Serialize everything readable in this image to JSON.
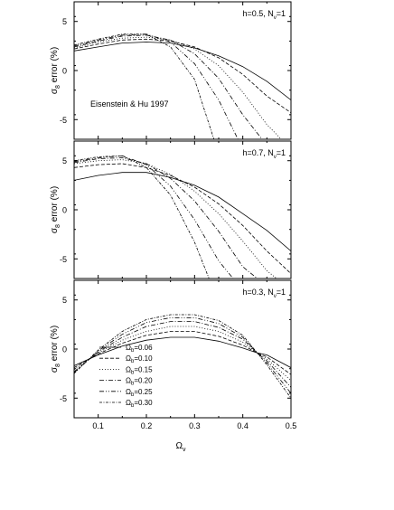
{
  "figure": {
    "xlabel_main": "Ω",
    "xlabel_sub": "ν",
    "x_ticks": [
      "0.1",
      "0.2",
      "0.3",
      "0.4",
      "0.5"
    ]
  },
  "chart_data": [
    {
      "type": "line",
      "panel": "top",
      "annotation": "h=0.5, N",
      "annotation_sub": "ν",
      "annotation_tail": "=1",
      "extra_label": "Eisenstein & Hu 1997",
      "ylabel_main": "σ",
      "ylabel_sub": "8",
      "ylabel_tail": " error (%)",
      "xlim": [
        0.05,
        0.5
      ],
      "ylim": [
        -7,
        7
      ],
      "x_ticks": [
        0.1,
        0.2,
        0.3,
        0.4,
        0.5
      ],
      "y_ticks": [
        -5,
        0,
        5
      ],
      "grid": false,
      "series": [
        {
          "name": "Ωb=0.06",
          "style": "solid",
          "x": [
            0.05,
            0.1,
            0.15,
            0.2,
            0.25,
            0.3,
            0.35,
            0.4,
            0.45,
            0.5
          ],
          "y": [
            2.0,
            2.4,
            2.8,
            2.9,
            2.8,
            2.3,
            1.5,
            0.4,
            -1.1,
            -3.0
          ]
        },
        {
          "name": "Ωb=0.10",
          "style": "dash",
          "x": [
            0.05,
            0.1,
            0.15,
            0.2,
            0.25,
            0.3,
            0.35,
            0.4,
            0.45,
            0.5
          ],
          "y": [
            2.2,
            2.7,
            3.1,
            3.2,
            3.0,
            2.4,
            1.3,
            -0.4,
            -2.6,
            -4.3
          ]
        },
        {
          "name": "Ωb=0.15",
          "style": "dot",
          "x": [
            0.05,
            0.1,
            0.15,
            0.2,
            0.25,
            0.3,
            0.35,
            0.4,
            0.45,
            0.48
          ],
          "y": [
            2.3,
            2.9,
            3.3,
            3.4,
            3.1,
            2.2,
            0.5,
            -2.2,
            -5.5,
            -7.0
          ]
        },
        {
          "name": "Ωb=0.20",
          "style": "dashdot",
          "x": [
            0.05,
            0.1,
            0.15,
            0.2,
            0.25,
            0.3,
            0.35,
            0.4,
            0.44
          ],
          "y": [
            2.4,
            3.0,
            3.5,
            3.6,
            3.1,
            1.7,
            -0.8,
            -4.5,
            -7.0
          ]
        },
        {
          "name": "Ωb=0.25",
          "style": "dashdotdot",
          "x": [
            0.05,
            0.1,
            0.15,
            0.2,
            0.25,
            0.3,
            0.35,
            0.39
          ],
          "y": [
            2.5,
            3.1,
            3.6,
            3.7,
            2.9,
            0.7,
            -3.0,
            -7.0
          ]
        },
        {
          "name": "Ωb=0.30",
          "style": "shortdashdot",
          "x": [
            0.05,
            0.1,
            0.15,
            0.2,
            0.25,
            0.3,
            0.34
          ],
          "y": [
            2.6,
            3.2,
            3.7,
            3.7,
            2.4,
            -0.9,
            -7.0
          ]
        }
      ]
    },
    {
      "type": "line",
      "panel": "middle",
      "annotation": "h=0.7, N",
      "annotation_sub": "ν",
      "annotation_tail": "=1",
      "ylabel_main": "σ",
      "ylabel_sub": "8",
      "ylabel_tail": " error (%)",
      "xlim": [
        0.05,
        0.5
      ],
      "ylim": [
        -7,
        7
      ],
      "x_ticks": [
        0.1,
        0.2,
        0.3,
        0.4,
        0.5
      ],
      "y_ticks": [
        -5,
        0,
        5
      ],
      "grid": false,
      "series": [
        {
          "name": "Ωb=0.06",
          "style": "solid",
          "x": [
            0.05,
            0.1,
            0.15,
            0.2,
            0.25,
            0.3,
            0.35,
            0.4,
            0.45,
            0.5
          ],
          "y": [
            3.0,
            3.5,
            3.8,
            3.8,
            3.3,
            2.5,
            1.3,
            -0.4,
            -2.1,
            -4.2
          ]
        },
        {
          "name": "Ωb=0.10",
          "style": "dash",
          "x": [
            0.05,
            0.1,
            0.15,
            0.2,
            0.25,
            0.3,
            0.35,
            0.4,
            0.45,
            0.5
          ],
          "y": [
            4.3,
            4.6,
            4.7,
            4.3,
            3.5,
            2.3,
            0.6,
            -1.6,
            -4.2,
            -6.5
          ]
        },
        {
          "name": "Ωb=0.15",
          "style": "dot",
          "x": [
            0.05,
            0.1,
            0.15,
            0.2,
            0.25,
            0.3,
            0.35,
            0.4,
            0.45,
            0.47
          ],
          "y": [
            4.7,
            5.0,
            5.1,
            4.7,
            3.6,
            1.9,
            -0.4,
            -3.2,
            -6.2,
            -7.0
          ]
        },
        {
          "name": "Ωb=0.20",
          "style": "dashdot",
          "x": [
            0.05,
            0.1,
            0.15,
            0.2,
            0.25,
            0.3,
            0.35,
            0.4,
            0.43
          ],
          "y": [
            4.8,
            5.2,
            5.3,
            4.7,
            3.2,
            0.9,
            -2.2,
            -5.8,
            -7.0
          ]
        },
        {
          "name": "Ωb=0.25",
          "style": "dashdotdot",
          "x": [
            0.05,
            0.1,
            0.15,
            0.2,
            0.25,
            0.3,
            0.35,
            0.38
          ],
          "y": [
            4.9,
            5.3,
            5.5,
            4.6,
            2.4,
            -1.0,
            -5.2,
            -7.0
          ]
        },
        {
          "name": "Ωb=0.30",
          "style": "shortdashdot",
          "x": [
            0.05,
            0.1,
            0.15,
            0.2,
            0.25,
            0.3,
            0.33
          ],
          "y": [
            5.0,
            5.4,
            5.5,
            4.3,
            1.5,
            -3.3,
            -7.0
          ]
        }
      ]
    },
    {
      "type": "line",
      "panel": "bottom",
      "annotation": "h=0.3, N",
      "annotation_sub": "ν",
      "annotation_tail": "=1",
      "ylabel_main": "σ",
      "ylabel_sub": "8",
      "ylabel_tail": " error (%)",
      "xlim": [
        0.05,
        0.5
      ],
      "ylim": [
        -7,
        7
      ],
      "x_ticks": [
        0.1,
        0.2,
        0.3,
        0.4,
        0.5
      ],
      "y_ticks": [
        -5,
        0,
        5
      ],
      "grid": false,
      "legend": "bottom-left",
      "series": [
        {
          "name": "Ωb=0.06",
          "style": "solid",
          "x": [
            0.05,
            0.1,
            0.15,
            0.2,
            0.25,
            0.3,
            0.35,
            0.4,
            0.43,
            0.45,
            0.5
          ],
          "y": [
            -1.7,
            -0.6,
            0.3,
            0.9,
            1.2,
            1.2,
            0.8,
            0.1,
            -0.4,
            -0.6,
            -1.9
          ]
        },
        {
          "name": "Ωb=0.10",
          "style": "dash",
          "x": [
            0.05,
            0.1,
            0.15,
            0.2,
            0.25,
            0.3,
            0.35,
            0.4,
            0.43,
            0.45,
            0.5
          ],
          "y": [
            -1.9,
            -0.5,
            0.6,
            1.4,
            1.8,
            1.8,
            1.3,
            0.4,
            -0.4,
            -0.8,
            -2.6
          ]
        },
        {
          "name": "Ωb=0.15",
          "style": "dot",
          "x": [
            0.05,
            0.1,
            0.15,
            0.2,
            0.25,
            0.3,
            0.35,
            0.4,
            0.43,
            0.45,
            0.5
          ],
          "y": [
            -2.1,
            -0.4,
            0.9,
            1.8,
            2.3,
            2.3,
            1.8,
            0.7,
            -0.4,
            -1.0,
            -3.2
          ]
        },
        {
          "name": "Ωb=0.20",
          "style": "dashdot",
          "x": [
            0.05,
            0.1,
            0.15,
            0.2,
            0.25,
            0.3,
            0.35,
            0.4,
            0.43,
            0.45,
            0.5
          ],
          "y": [
            -2.3,
            -0.3,
            1.2,
            2.3,
            2.8,
            2.8,
            2.2,
            1.0,
            -0.4,
            -1.2,
            -3.9
          ]
        },
        {
          "name": "Ωb=0.25",
          "style": "dashdotdot",
          "x": [
            0.05,
            0.1,
            0.15,
            0.2,
            0.25,
            0.3,
            0.35,
            0.4,
            0.43,
            0.45,
            0.5
          ],
          "y": [
            -2.4,
            -0.2,
            1.5,
            2.7,
            3.2,
            3.2,
            2.6,
            1.2,
            -0.4,
            -1.4,
            -4.5
          ]
        },
        {
          "name": "Ωb=0.30",
          "style": "shortdashdot",
          "x": [
            0.05,
            0.1,
            0.15,
            0.2,
            0.25,
            0.3,
            0.35,
            0.4,
            0.43,
            0.45,
            0.5
          ],
          "y": [
            -2.5,
            -0.1,
            1.8,
            3.0,
            3.5,
            3.5,
            2.9,
            1.4,
            -0.4,
            -1.6,
            -5.0
          ]
        }
      ]
    }
  ],
  "legend": {
    "entries": [
      {
        "prefix": "Ω",
        "sub": "b",
        "value": "=0.06",
        "style": "solid"
      },
      {
        "prefix": "Ω",
        "sub": "b",
        "value": "=0.10",
        "style": "dash"
      },
      {
        "prefix": "Ω",
        "sub": "b",
        "value": "=0.15",
        "style": "dot"
      },
      {
        "prefix": "Ω",
        "sub": "b",
        "value": "=0.20",
        "style": "dashdot"
      },
      {
        "prefix": "Ω",
        "sub": "b",
        "value": "=0.25",
        "style": "dashdotdot"
      },
      {
        "prefix": "Ω",
        "sub": "b",
        "value": "=0.30",
        "style": "shortdashdot"
      }
    ]
  }
}
